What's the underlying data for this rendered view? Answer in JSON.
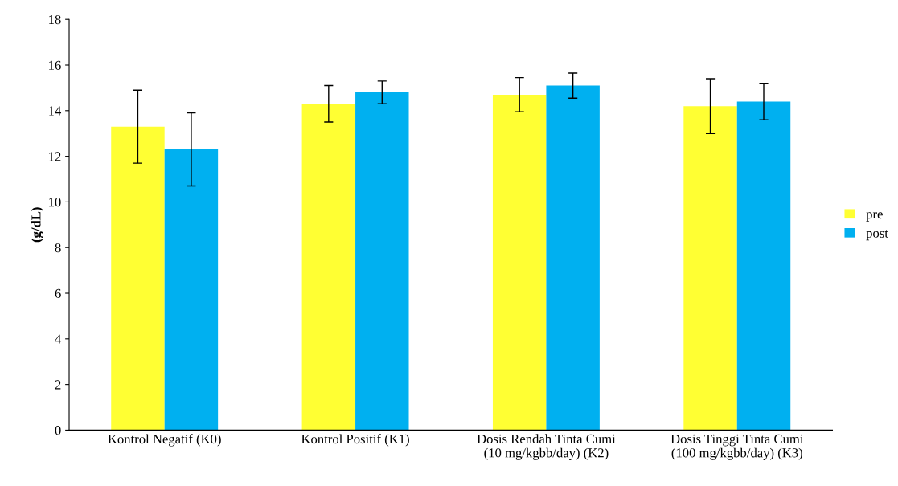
{
  "chart_data": {
    "type": "bar",
    "ylabel": "(g/dL)",
    "categories": [
      "Kontrol Negatif (K0)",
      "Kontrol Positif (K1)",
      "Dosis Rendah Tinta Cumi\n(10 mg/kgbb/day) (K2)",
      "Dosis Tinggi Tinta Cumi\n(100 mg/kgbb/day) (K3)"
    ],
    "series": [
      {
        "name": "pre",
        "color": "#ffff33",
        "values": [
          13.3,
          14.3,
          14.7,
          14.2
        ],
        "errors": [
          1.6,
          0.8,
          0.75,
          1.2
        ]
      },
      {
        "name": "post",
        "color": "#00b0f0",
        "values": [
          12.3,
          14.8,
          15.1,
          14.4
        ],
        "errors": [
          1.6,
          0.5,
          0.55,
          0.8
        ]
      }
    ],
    "ylim": [
      0,
      18
    ],
    "yticks": [
      0,
      2,
      4,
      6,
      8,
      10,
      12,
      14,
      16,
      18
    ],
    "grid": false,
    "legend": "right"
  }
}
